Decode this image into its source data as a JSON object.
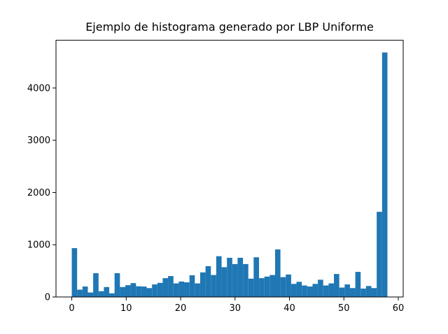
{
  "chart_data": {
    "type": "histogram",
    "title": "Ejemplo de histograma generado por LBP Uniforme",
    "bins": [
      0,
      0.98,
      1.97,
      2.95,
      3.93,
      4.92,
      5.9,
      6.88,
      7.86,
      8.85,
      9.83,
      10.81,
      11.8,
      12.78,
      13.76,
      14.75,
      15.73,
      16.71,
      17.69,
      18.68,
      19.66,
      20.64,
      21.63,
      22.61,
      23.59,
      24.58,
      25.56,
      26.54,
      27.53,
      28.51,
      29.49,
      30.47,
      31.46,
      32.44,
      33.42,
      34.41,
      35.39,
      36.37,
      37.36,
      38.34,
      39.32,
      40.31,
      41.29,
      42.27,
      43.25,
      44.24,
      45.22,
      46.2,
      47.19,
      48.17,
      49.15,
      50.14,
      51.12,
      52.1,
      53.08,
      54.07,
      55.05,
      56.03,
      57.02,
      58
    ],
    "values": [
      935,
      140,
      200,
      85,
      455,
      110,
      190,
      70,
      455,
      190,
      225,
      265,
      205,
      200,
      170,
      240,
      270,
      360,
      400,
      260,
      295,
      280,
      415,
      260,
      470,
      590,
      420,
      780,
      570,
      750,
      630,
      750,
      630,
      350,
      760,
      360,
      390,
      420,
      910,
      380,
      430,
      250,
      290,
      220,
      200,
      250,
      330,
      220,
      260,
      440,
      180,
      240,
      170,
      480,
      160,
      210,
      170,
      1630,
      4680
    ],
    "color": "#1f77b4",
    "xlim": [
      -2.9,
      60.9
    ],
    "xticks": [
      0,
      10,
      20,
      30,
      40,
      50,
      60
    ],
    "ylim": [
      0,
      4914
    ],
    "yticks": [
      0,
      1000,
      2000,
      3000,
      4000
    ]
  }
}
